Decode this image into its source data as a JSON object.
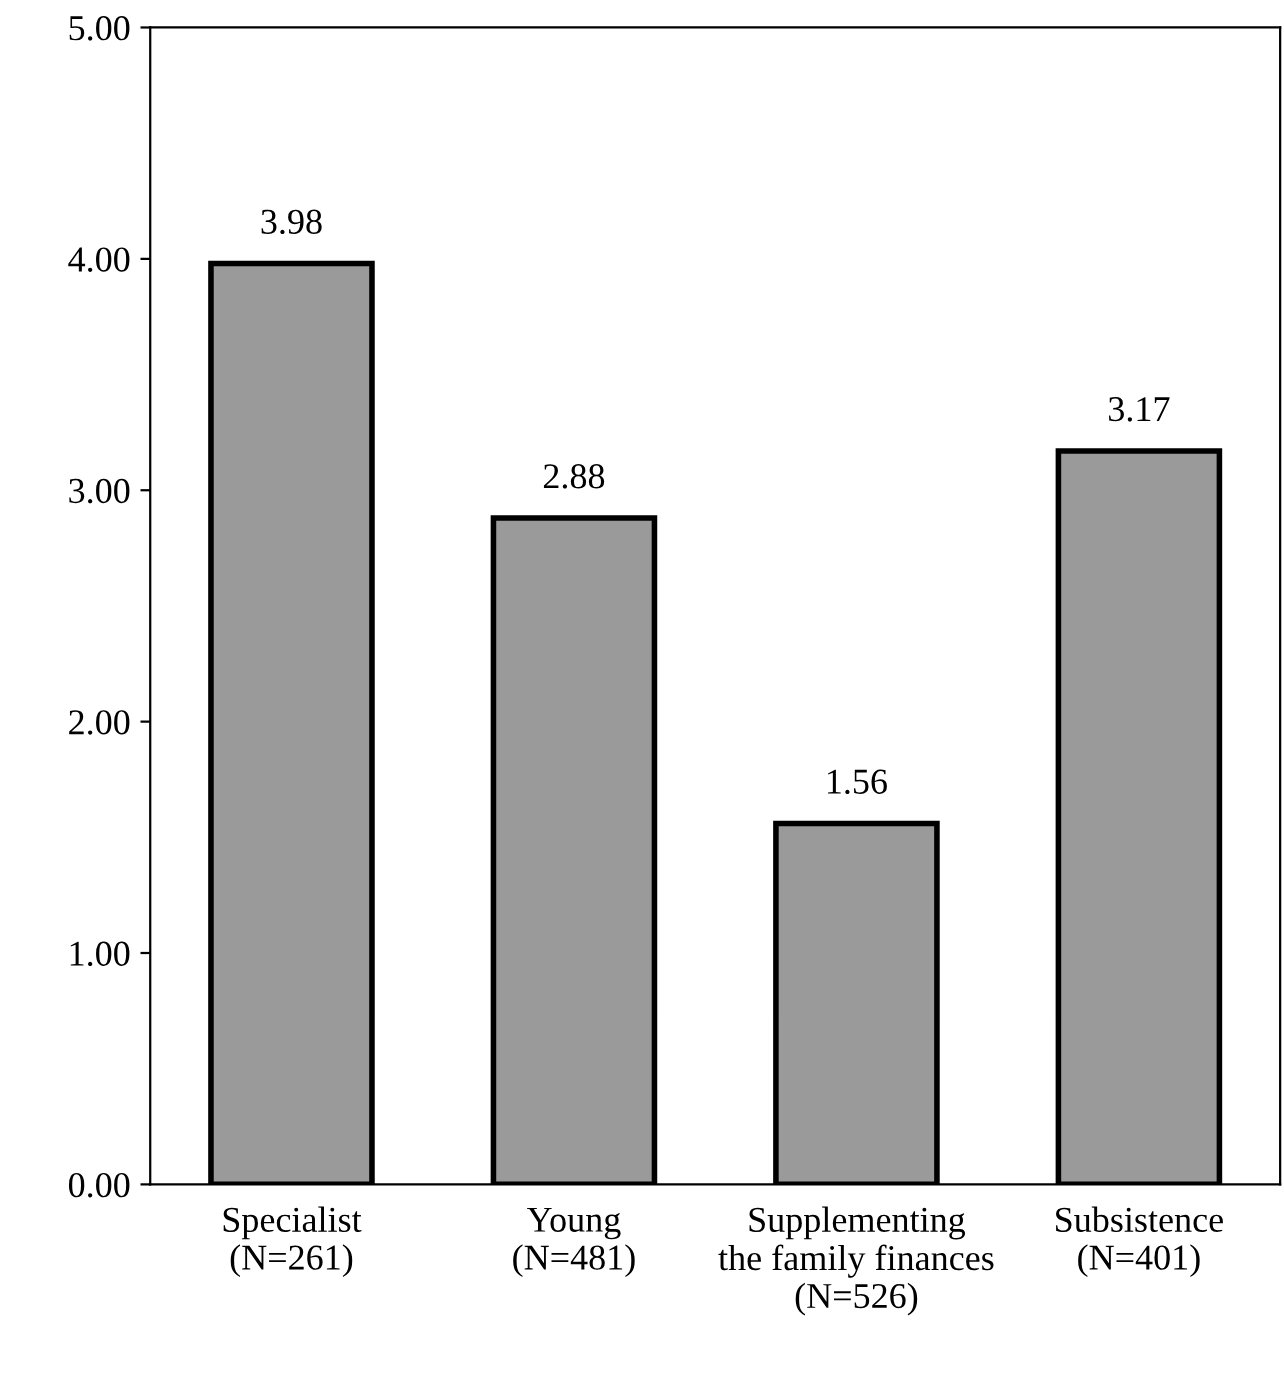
{
  "chart_data": {
    "type": "bar",
    "categories": [
      "Specialist\n(N=261)",
      "Young\n(N=481)",
      "Supplementing\nthe family finances\n(N=526)",
      "Subsistence\n(N=401)"
    ],
    "values": [
      3.98,
      2.88,
      1.56,
      3.17
    ],
    "value_labels": [
      "3.98",
      "2.88",
      "1.56",
      "3.17"
    ],
    "color": "#9a9a9a",
    "ylim": [
      0,
      5
    ],
    "yticks": [
      {
        "value": 0,
        "label": "0.00"
      },
      {
        "value": 1,
        "label": "1.00"
      },
      {
        "value": 2,
        "label": "2.00"
      },
      {
        "value": 3,
        "label": "3.00"
      },
      {
        "value": 4,
        "label": "4.00"
      },
      {
        "value": 5,
        "label": "5.00"
      }
    ],
    "grid": false,
    "legend": false
  }
}
